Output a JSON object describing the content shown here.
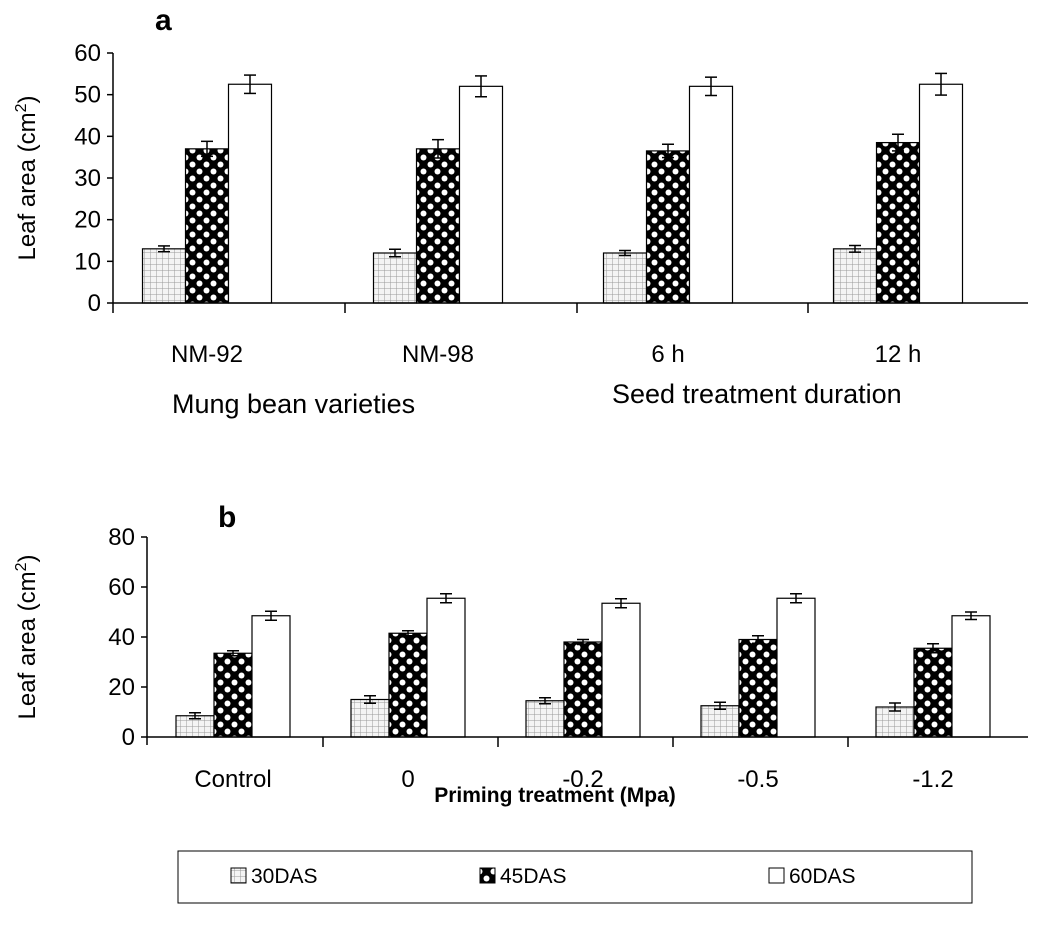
{
  "legend": {
    "items": [
      {
        "label": "30DAS",
        "pattern": "grid"
      },
      {
        "label": "45DAS",
        "pattern": "checker"
      },
      {
        "label": "60DAS",
        "pattern": "blank"
      }
    ]
  },
  "chart_data": [
    {
      "type": "bar",
      "panel_label": "a",
      "ylabel": "Leaf area (cm²)",
      "ylabel_text": "Leaf area (cm",
      "ylabel_sup": "2",
      "ylabel_close": ")",
      "ylim": [
        0,
        60
      ],
      "yticks": [
        "0",
        "10",
        "20",
        "30",
        "40",
        "50",
        "60"
      ],
      "categories": [
        "NM-92",
        "NM-98",
        "6 h",
        "12 h"
      ],
      "group_labels": [
        "Mung bean varieties",
        "Seed treatment duration"
      ],
      "series": [
        {
          "name": "30DAS",
          "values": [
            13,
            12,
            12,
            13
          ],
          "errors": [
            0.7,
            0.9,
            0.6,
            0.8
          ]
        },
        {
          "name": "45DAS",
          "values": [
            37,
            37,
            36.5,
            38.5
          ],
          "errors": [
            1.8,
            2.2,
            1.6,
            2.0
          ]
        },
        {
          "name": "60DAS",
          "values": [
            52.5,
            52,
            52,
            52.5
          ],
          "errors": [
            2.2,
            2.5,
            2.2,
            2.6
          ]
        }
      ]
    },
    {
      "type": "bar",
      "panel_label": "b",
      "ylabel": "Leaf area (cm²)",
      "ylabel_text": "Leaf area (cm",
      "ylabel_sup": "2",
      "ylabel_close": ")",
      "xlabel": "Priming treatment (Mpa)",
      "ylim": [
        0,
        80
      ],
      "yticks": [
        "0",
        "20",
        "40",
        "60",
        "80"
      ],
      "categories": [
        "Control",
        "0",
        "-0.2",
        "-0.5",
        "-1.2"
      ],
      "series": [
        {
          "name": "30DAS",
          "values": [
            8.5,
            15,
            14.5,
            12.5,
            12
          ],
          "errors": [
            1.2,
            1.5,
            1.2,
            1.4,
            1.6
          ]
        },
        {
          "name": "45DAS",
          "values": [
            33.5,
            41.5,
            38,
            39,
            35.5
          ],
          "errors": [
            1.0,
            1.0,
            1.0,
            1.5,
            1.8
          ]
        },
        {
          "name": "60DAS",
          "values": [
            48.5,
            55.5,
            53.5,
            55.5,
            48.5
          ],
          "errors": [
            1.8,
            1.8,
            1.8,
            1.8,
            1.5
          ]
        }
      ]
    }
  ]
}
